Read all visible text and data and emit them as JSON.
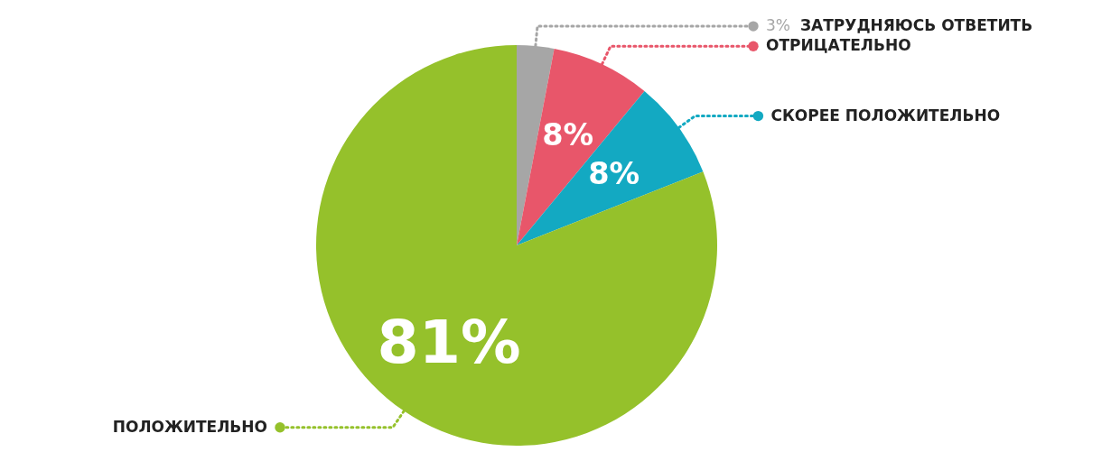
{
  "chart_data": {
    "type": "pie",
    "categories": [
      "ЗАТРУДНЯЮСЬ ОТВЕТИТЬ",
      "ОТРИЦАТЕЛЬНО",
      "СКОРЕЕ ПОЛОЖИТЕЛЬНО",
      "ПОЛОЖИТЕЛЬНО"
    ],
    "values": [
      3,
      8,
      8,
      81
    ],
    "value_labels": [
      "3%",
      "8%",
      "8%",
      "81%"
    ],
    "colors": [
      "#a6a6a6",
      "#e8566a",
      "#13a9c2",
      "#95c12b"
    ],
    "legend": "right"
  }
}
